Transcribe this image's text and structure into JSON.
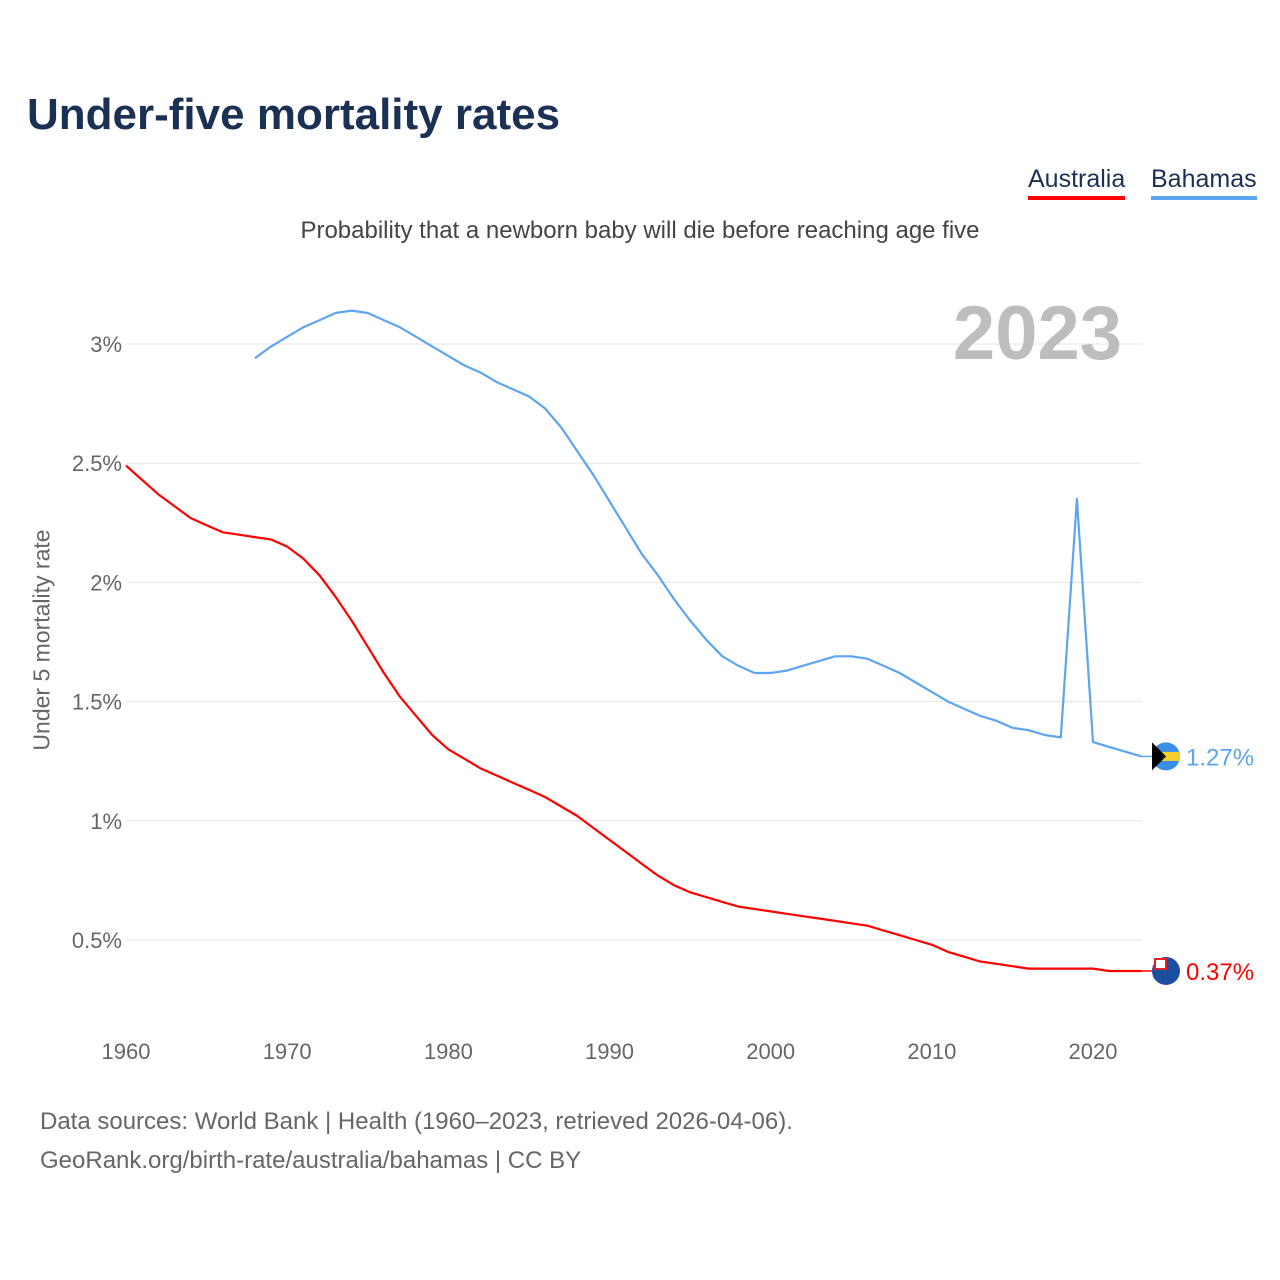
{
  "title": "Under-five mortality rates",
  "year_label": "2023",
  "sources": [
    "Data sources: World Bank | Health (1960–2023, retrieved 2026-04-06).",
    "GeoRank.org/birth-rate/australia/bahamas | CC BY"
  ],
  "chart_data": {
    "type": "line",
    "title": "Under-five mortality rates",
    "subtitle": "Probability that a newborn baby will die before reaching age five",
    "ylabel": "Under 5 mortality rate",
    "xlabel": "",
    "xlim": [
      1960,
      2023
    ],
    "ylim": [
      0,
      3.3
    ],
    "xticks": [
      "1960",
      "1970",
      "1980",
      "1990",
      "2000",
      "2010",
      "2020"
    ],
    "yticks": [
      {
        "v": 0.5,
        "l": "0.5%"
      },
      {
        "v": 1,
        "l": "1%"
      },
      {
        "v": 1.5,
        "l": "1.5%"
      },
      {
        "v": 2,
        "l": "2%"
      },
      {
        "v": 2.5,
        "l": "2.5%"
      },
      {
        "v": 3,
        "l": "3%"
      }
    ],
    "grid": true,
    "legend_placement": "top-right",
    "series": [
      {
        "name": "Australia",
        "color": "#ff0000",
        "end_label": "0.37%",
        "start": 1960,
        "values": [
          2.49,
          2.43,
          2.37,
          2.32,
          2.27,
          2.24,
          2.21,
          2.2,
          2.19,
          2.18,
          2.15,
          2.1,
          2.03,
          1.94,
          1.84,
          1.73,
          1.62,
          1.52,
          1.44,
          1.36,
          1.3,
          1.26,
          1.22,
          1.19,
          1.16,
          1.13,
          1.1,
          1.06,
          1.02,
          0.97,
          0.92,
          0.87,
          0.82,
          0.77,
          0.73,
          0.7,
          0.68,
          0.66,
          0.64,
          0.63,
          0.62,
          0.61,
          0.6,
          0.59,
          0.58,
          0.57,
          0.56,
          0.54,
          0.52,
          0.5,
          0.48,
          0.45,
          0.43,
          0.41,
          0.4,
          0.39,
          0.38,
          0.38,
          0.38,
          0.38,
          0.38,
          0.37,
          0.37,
          0.37
        ]
      },
      {
        "name": "Bahamas",
        "color": "#5da5ee",
        "end_label": "1.27%",
        "start": 1968,
        "values": [
          2.94,
          2.99,
          3.03,
          3.07,
          3.1,
          3.13,
          3.14,
          3.13,
          3.1,
          3.07,
          3.03,
          2.99,
          2.95,
          2.91,
          2.88,
          2.84,
          2.81,
          2.78,
          2.73,
          2.65,
          2.55,
          2.45,
          2.34,
          2.23,
          2.12,
          2.03,
          1.93,
          1.84,
          1.76,
          1.69,
          1.65,
          1.62,
          1.62,
          1.63,
          1.65,
          1.67,
          1.69,
          1.69,
          1.68,
          1.65,
          1.62,
          1.58,
          1.54,
          1.5,
          1.47,
          1.44,
          1.42,
          1.39,
          1.38,
          1.36,
          1.35,
          2.35,
          1.33,
          1.31,
          1.29,
          1.27
        ]
      }
    ]
  }
}
